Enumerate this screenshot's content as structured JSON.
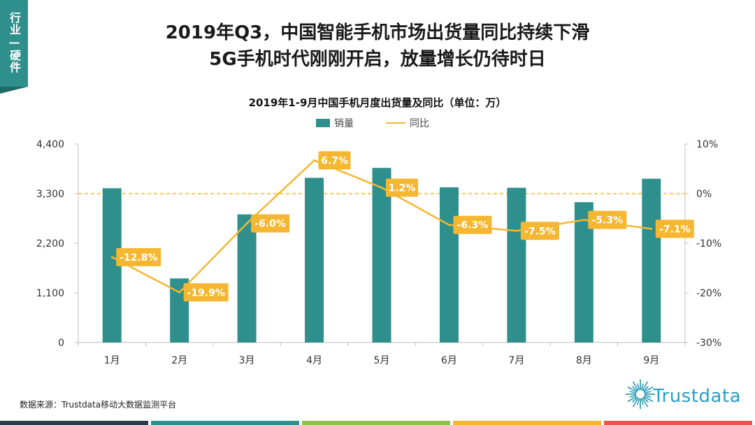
{
  "tag": "行业—硬件",
  "headline_1": "2019年Q3，中国智能手机市场出货量同比持续下滑",
  "headline_2": "5G手机时代刚刚开启，放量增长仍待时日",
  "source": "数据来源：Trustdata移动大数据监测平台",
  "logo_text": "Trustdata",
  "colors": {
    "bar": "#2e8f8c",
    "line": "#f5b731",
    "footer": [
      "#2b3a4a",
      "#2e8f8c",
      "#8fc04a",
      "#f5b731",
      "#e8554e"
    ]
  },
  "chart_data": {
    "type": "bar",
    "title": "2019年1-9月中国手机月度出货量及同比（单位：万）",
    "categories": [
      "1月",
      "2月",
      "3月",
      "4月",
      "5月",
      "6月",
      "7月",
      "8月",
      "9月"
    ],
    "series": [
      {
        "name": "销量",
        "type": "bar",
        "axis": "left",
        "values": [
          3420,
          1420,
          2840,
          3650,
          3870,
          3440,
          3430,
          3110,
          3630
        ]
      },
      {
        "name": "同比",
        "type": "line",
        "axis": "right",
        "values": [
          -12.8,
          -19.9,
          -6.0,
          6.7,
          1.2,
          -6.3,
          -7.5,
          -5.3,
          -7.1
        ],
        "labels": [
          "-12.8%",
          "-19.9%",
          "-6.0%",
          "6.7%",
          "1.2%",
          "-6.3%",
          "-7.5%",
          "-5.3%",
          "-7.1%"
        ]
      }
    ],
    "ylim": [
      0,
      4400
    ],
    "yticks": [
      "0",
      "1,100",
      "2,200",
      "3,300",
      "4,400"
    ],
    "y2lim": [
      -30,
      10
    ],
    "y2ticks": [
      "-30%",
      "-20%",
      "-10%",
      "0%",
      "10%"
    ],
    "zero_line": "dashed",
    "legend": "top-center"
  }
}
